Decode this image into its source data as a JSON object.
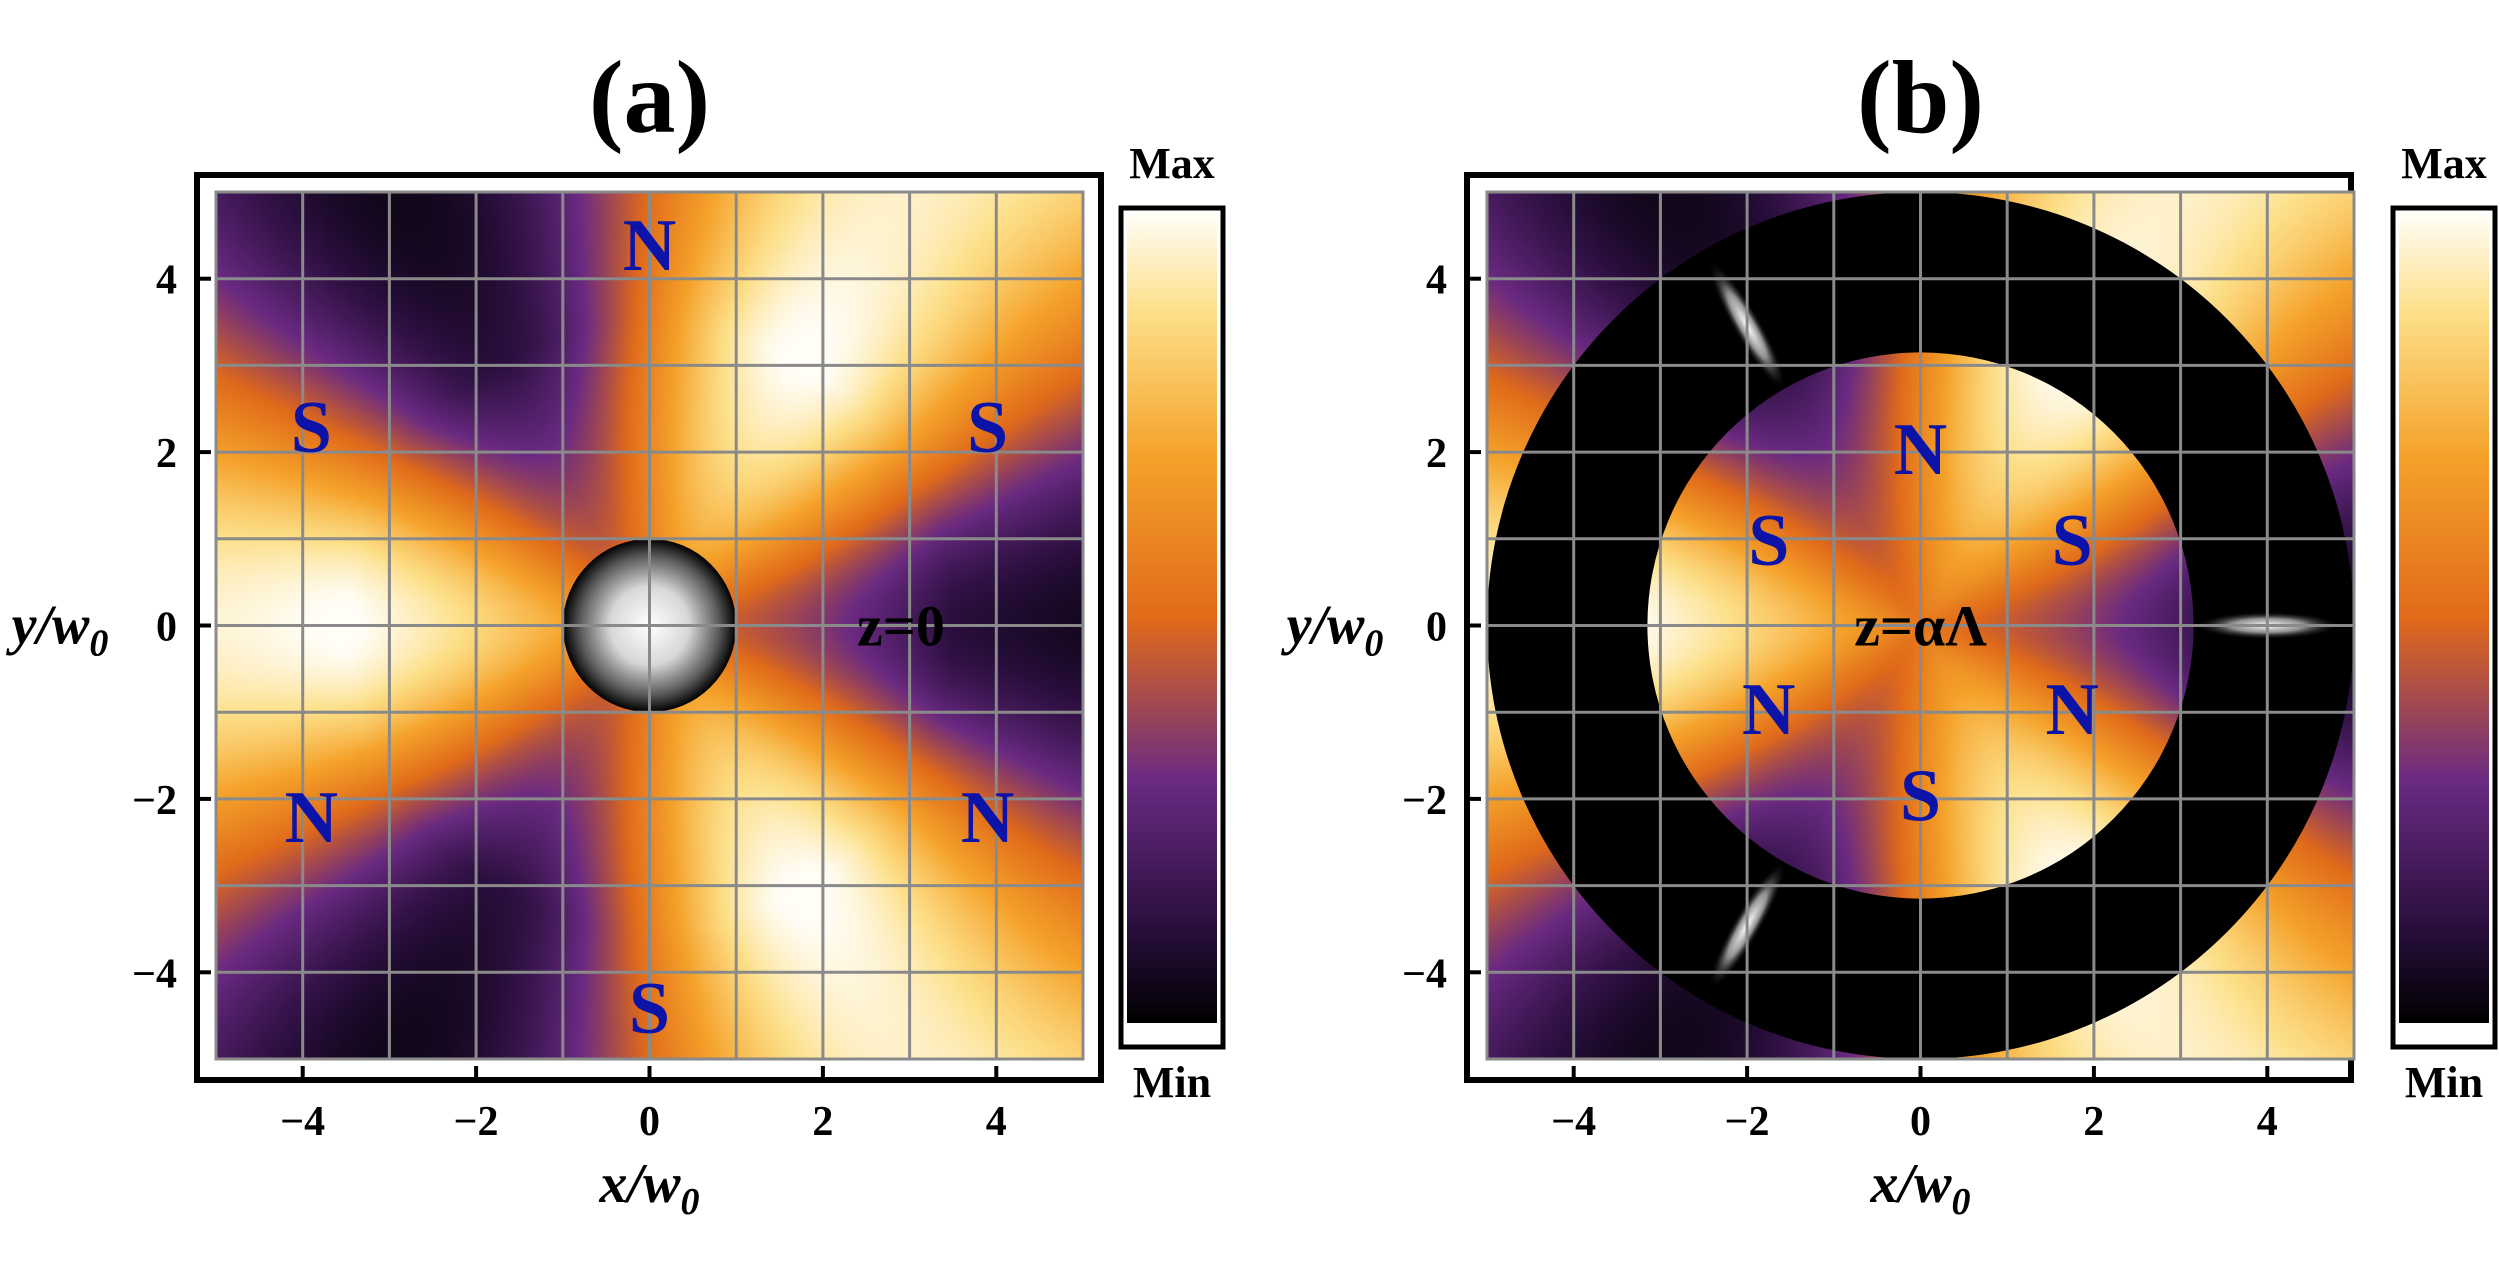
{
  "chart_data": [
    {
      "type": "heatmap",
      "panel_label": "(a)",
      "xlabel": "x/w",
      "xlabel_sub": "0",
      "ylabel": "y/w",
      "ylabel_sub": "0",
      "xlim": [
        -5,
        5
      ],
      "ylim": [
        -5,
        5
      ],
      "x_ticks": [
        -4,
        -2,
        0,
        2,
        4
      ],
      "y_ticks": [
        4,
        2,
        0,
        -2,
        -4
      ],
      "x_tick_labels": [
        "−4",
        "−2",
        "0",
        "2",
        "4"
      ],
      "y_tick_labels": [
        "4",
        "2",
        "0",
        "−2",
        "−4"
      ],
      "grid": true,
      "grid_spacing": 1,
      "colorbar": {
        "max_label": "Max",
        "min_label": "Min"
      },
      "plane_label": "z=0",
      "plane_label_pos": [
        2.9,
        0
      ],
      "beam": {
        "type": "gaussian-spot",
        "center": [
          0,
          0
        ],
        "radius": 1.0
      },
      "pole_labels": [
        {
          "text": "N",
          "x": 0,
          "y": 4.4
        },
        {
          "text": "S",
          "x": -3.9,
          "y": 2.3
        },
        {
          "text": "S",
          "x": 3.9,
          "y": 2.3
        },
        {
          "text": "N",
          "x": -3.9,
          "y": -2.2
        },
        {
          "text": "N",
          "x": 3.9,
          "y": -2.2
        },
        {
          "text": "S",
          "x": 0,
          "y": -4.4
        }
      ]
    },
    {
      "type": "heatmap",
      "panel_label": "(b)",
      "xlabel": "x/w",
      "xlabel_sub": "0",
      "ylabel": "y/w",
      "ylabel_sub": "0",
      "xlim": [
        -5,
        5
      ],
      "ylim": [
        -5,
        5
      ],
      "x_ticks": [
        -4,
        -2,
        0,
        2,
        4
      ],
      "y_ticks": [
        4,
        2,
        0,
        -2,
        -4
      ],
      "x_tick_labels": [
        "−4",
        "−2",
        "0",
        "2",
        "4"
      ],
      "y_tick_labels": [
        "4",
        "2",
        "0",
        "−2",
        "−4"
      ],
      "grid": true,
      "grid_spacing": 1,
      "colorbar": {
        "max_label": "Max",
        "min_label": "Min"
      },
      "plane_label": "z=αΛ",
      "plane_label_pos": [
        0,
        0
      ],
      "dark_ring": {
        "inner_radius": 3.15,
        "outer_radius": 5.0
      },
      "bright_spots": [
        {
          "x": 4.0,
          "y": 0.0,
          "angle_deg": 0
        },
        {
          "x": -2.0,
          "y": 3.46,
          "angle_deg": 120
        },
        {
          "x": -2.0,
          "y": -3.46,
          "angle_deg": 240
        }
      ],
      "pole_labels": [
        {
          "text": "N",
          "x": 0,
          "y": 2.05
        },
        {
          "text": "S",
          "x": -1.75,
          "y": 1.0
        },
        {
          "text": "S",
          "x": 1.75,
          "y": 1.0
        },
        {
          "text": "N",
          "x": -1.75,
          "y": -0.95
        },
        {
          "text": "N",
          "x": 1.75,
          "y": -0.95
        },
        {
          "text": "S",
          "x": 0,
          "y": -1.95
        }
      ]
    }
  ]
}
